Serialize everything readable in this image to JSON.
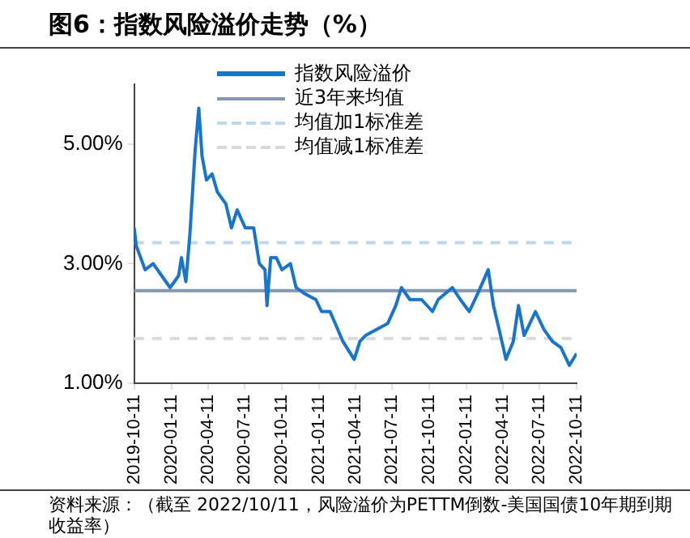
{
  "chart_data": {
    "type": "line",
    "title": "图6：指数风险溢价走势（%）",
    "xlim": [
      "2019-10-11",
      "2022-10-11"
    ],
    "xticks": [
      "2019-10-11",
      "2020-01-11",
      "2020-04-11",
      "2020-07-11",
      "2020-10-11",
      "2021-01-11",
      "2021-04-11",
      "2021-07-11",
      "2021-10-11",
      "2022-01-11",
      "2022-04-11",
      "2022-07-11",
      "2022-10-11"
    ],
    "ylim": [
      1,
      6
    ],
    "yticks": [
      {
        "value": 1,
        "label": "1.00%"
      },
      {
        "value": 3,
        "label": "3.00%"
      },
      {
        "value": 5,
        "label": "5.00%"
      }
    ],
    "grid": false,
    "legend": "top",
    "series": [
      {
        "name": "指数风险溢价",
        "color": "#1874cd",
        "x": [
          "2019-10-11",
          "2019-10-16",
          "2019-11-07",
          "2019-11-27",
          "2019-12-18",
          "2020-01-08",
          "2020-01-29",
          "2020-02-05",
          "2020-02-16",
          "2020-02-26",
          "2020-03-10",
          "2020-03-19",
          "2020-03-27",
          "2020-04-07",
          "2020-04-21",
          "2020-05-04",
          "2020-05-25",
          "2020-06-08",
          "2020-06-22",
          "2020-07-12",
          "2020-08-02",
          "2020-08-16",
          "2020-08-30",
          "2020-09-04",
          "2020-09-13",
          "2020-09-27",
          "2020-10-11",
          "2020-11-01",
          "2020-11-15",
          "2020-12-06",
          "2021-01-03",
          "2021-01-17",
          "2021-02-07",
          "2021-02-20",
          "2021-03-11",
          "2021-04-08",
          "2021-04-22",
          "2021-05-06",
          "2021-06-02",
          "2021-06-30",
          "2021-07-20",
          "2021-08-03",
          "2021-08-24",
          "2021-09-22",
          "2021-10-19",
          "2021-11-02",
          "2021-12-07",
          "2021-12-27",
          "2022-01-18",
          "2022-02-08",
          "2022-03-06",
          "2022-03-19",
          "2022-04-02",
          "2022-04-19",
          "2022-05-07",
          "2022-05-20",
          "2022-06-03",
          "2022-07-01",
          "2022-07-22",
          "2022-08-12",
          "2022-09-02",
          "2022-09-23",
          "2022-10-11"
        ],
        "values": [
          3.6,
          3.3,
          2.9,
          3.0,
          2.8,
          2.6,
          2.8,
          3.1,
          2.7,
          3.5,
          4.9,
          5.6,
          4.8,
          4.4,
          4.5,
          4.2,
          4.0,
          3.6,
          3.9,
          3.6,
          3.6,
          3.0,
          2.9,
          2.3,
          3.1,
          3.1,
          2.9,
          3.0,
          2.6,
          2.5,
          2.4,
          2.2,
          2.2,
          2.0,
          1.7,
          1.4,
          1.7,
          1.8,
          1.9,
          2.0,
          2.3,
          2.6,
          2.4,
          2.4,
          2.2,
          2.4,
          2.6,
          2.4,
          2.2,
          2.5,
          2.9,
          2.3,
          1.9,
          1.4,
          1.7,
          2.3,
          1.8,
          2.2,
          1.9,
          1.7,
          1.6,
          1.3,
          1.5
        ]
      }
    ],
    "ref_lines": [
      {
        "axis": "y",
        "value": 2.55,
        "label": "近3年来均值",
        "color": "#8497b0",
        "line_style": "solid"
      },
      {
        "axis": "y",
        "value": 3.35,
        "label": "均值加1标准差",
        "color": "#bdd7ee",
        "line_style": "dashed"
      },
      {
        "axis": "y",
        "value": 1.75,
        "label": "均值减1标准差",
        "color": "#d9d9d9",
        "line_style": "dashed"
      }
    ],
    "annotations": [
      "资料来源：（截至 2022/10/11，风险溢价为PETTM倒数-美国国债10年期到期收益率）"
    ]
  }
}
